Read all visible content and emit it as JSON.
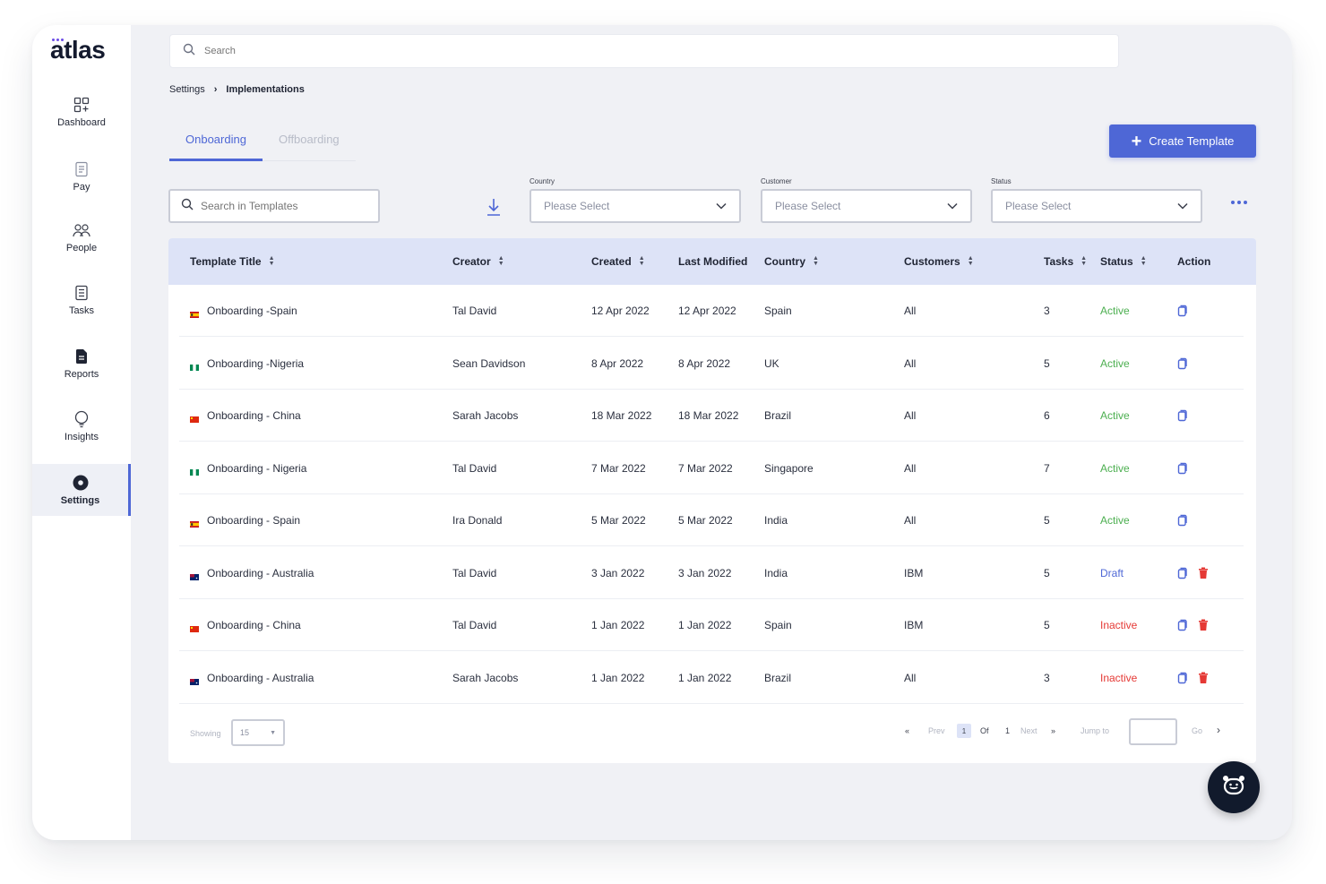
{
  "app": {
    "logo": "atlas",
    "brand_color": "#4e67d6",
    "accent_color": "#6b4ce6"
  },
  "sidebar": {
    "items": [
      {
        "label": "Dashboard",
        "icon": "dashboard-icon",
        "active": false
      },
      {
        "label": "Pay",
        "icon": "pay-icon",
        "active": false
      },
      {
        "label": "People",
        "icon": "people-icon",
        "active": false
      },
      {
        "label": "Tasks",
        "icon": "tasks-icon",
        "active": false
      },
      {
        "label": "Reports",
        "icon": "reports-icon",
        "active": false
      },
      {
        "label": "Insights",
        "icon": "insights-icon",
        "active": false
      },
      {
        "label": "Settings",
        "icon": "settings-icon",
        "active": true
      }
    ]
  },
  "search": {
    "placeholder": "Search"
  },
  "breadcrumb": {
    "parent": "Settings",
    "current": "Implementations"
  },
  "tabs": [
    {
      "label": "Onboarding",
      "active": true
    },
    {
      "label": "Offboarding",
      "active": false
    }
  ],
  "toolbar": {
    "create_label": "Create Template",
    "template_search_placeholder": "Search in Templates"
  },
  "filters": [
    {
      "label": "Country",
      "value": "Please Select"
    },
    {
      "label": "Customer",
      "value": "Please Select"
    },
    {
      "label": "Status",
      "value": "Please Select"
    }
  ],
  "table": {
    "columns": [
      "Template Title",
      "Creator",
      "Created",
      "Last Modified",
      "Country",
      "Customers",
      "Tasks",
      "Status",
      "Action"
    ],
    "rows": [
      {
        "title": "Onboarding -Spain",
        "flag": "spain",
        "creator": "Tal David",
        "created": "12 Apr 2022",
        "modified": "12 Apr 2022",
        "country": "Spain",
        "customers": "All",
        "tasks": "3",
        "status": "Active",
        "deletable": false
      },
      {
        "title": "Onboarding -Nigeria",
        "flag": "nigeria",
        "creator": "Sean Davidson",
        "created": "8 Apr 2022",
        "modified": "8 Apr 2022",
        "country": "UK",
        "customers": "All",
        "tasks": "5",
        "status": "Active",
        "deletable": false
      },
      {
        "title": "Onboarding - China",
        "flag": "china",
        "creator": "Sarah Jacobs",
        "created": "18 Mar 2022",
        "modified": "18 Mar 2022",
        "country": "Brazil",
        "customers": "All",
        "tasks": "6",
        "status": "Active",
        "deletable": false
      },
      {
        "title": "Onboarding - Nigeria",
        "flag": "nigeria",
        "creator": "Tal David",
        "created": "7 Mar 2022",
        "modified": "7 Mar 2022",
        "country": "Singapore",
        "customers": "All",
        "tasks": "7",
        "status": "Active",
        "deletable": false
      },
      {
        "title": "Onboarding - Spain",
        "flag": "spain",
        "creator": "Ira Donald",
        "created": "5 Mar 2022",
        "modified": "5 Mar 2022",
        "country": "India",
        "customers": "All",
        "tasks": "5",
        "status": "Active",
        "deletable": false
      },
      {
        "title": "Onboarding - Australia",
        "flag": "australia",
        "creator": "Tal David",
        "created": "3 Jan 2022",
        "modified": "3 Jan 2022",
        "country": "India",
        "customers": "IBM",
        "tasks": "5",
        "status": "Draft",
        "deletable": true
      },
      {
        "title": "Onboarding - China",
        "flag": "china",
        "creator": "Tal David",
        "created": "1 Jan 2022",
        "modified": "1 Jan 2022",
        "country": "Spain",
        "customers": "IBM",
        "tasks": "5",
        "status": "Inactive",
        "deletable": true
      },
      {
        "title": "Onboarding - Australia",
        "flag": "australia",
        "creator": "Sarah Jacobs",
        "created": "1 Jan 2022",
        "modified": "1 Jan 2022",
        "country": "Brazil",
        "customers": "All",
        "tasks": "3",
        "status": "Inactive",
        "deletable": true
      }
    ]
  },
  "pagination": {
    "showing_label": "Showing",
    "page_size": "15",
    "prev": "Prev",
    "current_page": "1",
    "of": "Of",
    "total_pages": "1",
    "next": "Next",
    "jump_label": "Jump to",
    "go": "Go"
  },
  "status_colors": {
    "Active": "#4caf50",
    "Draft": "#4e67d6",
    "Inactive": "#e53935"
  }
}
